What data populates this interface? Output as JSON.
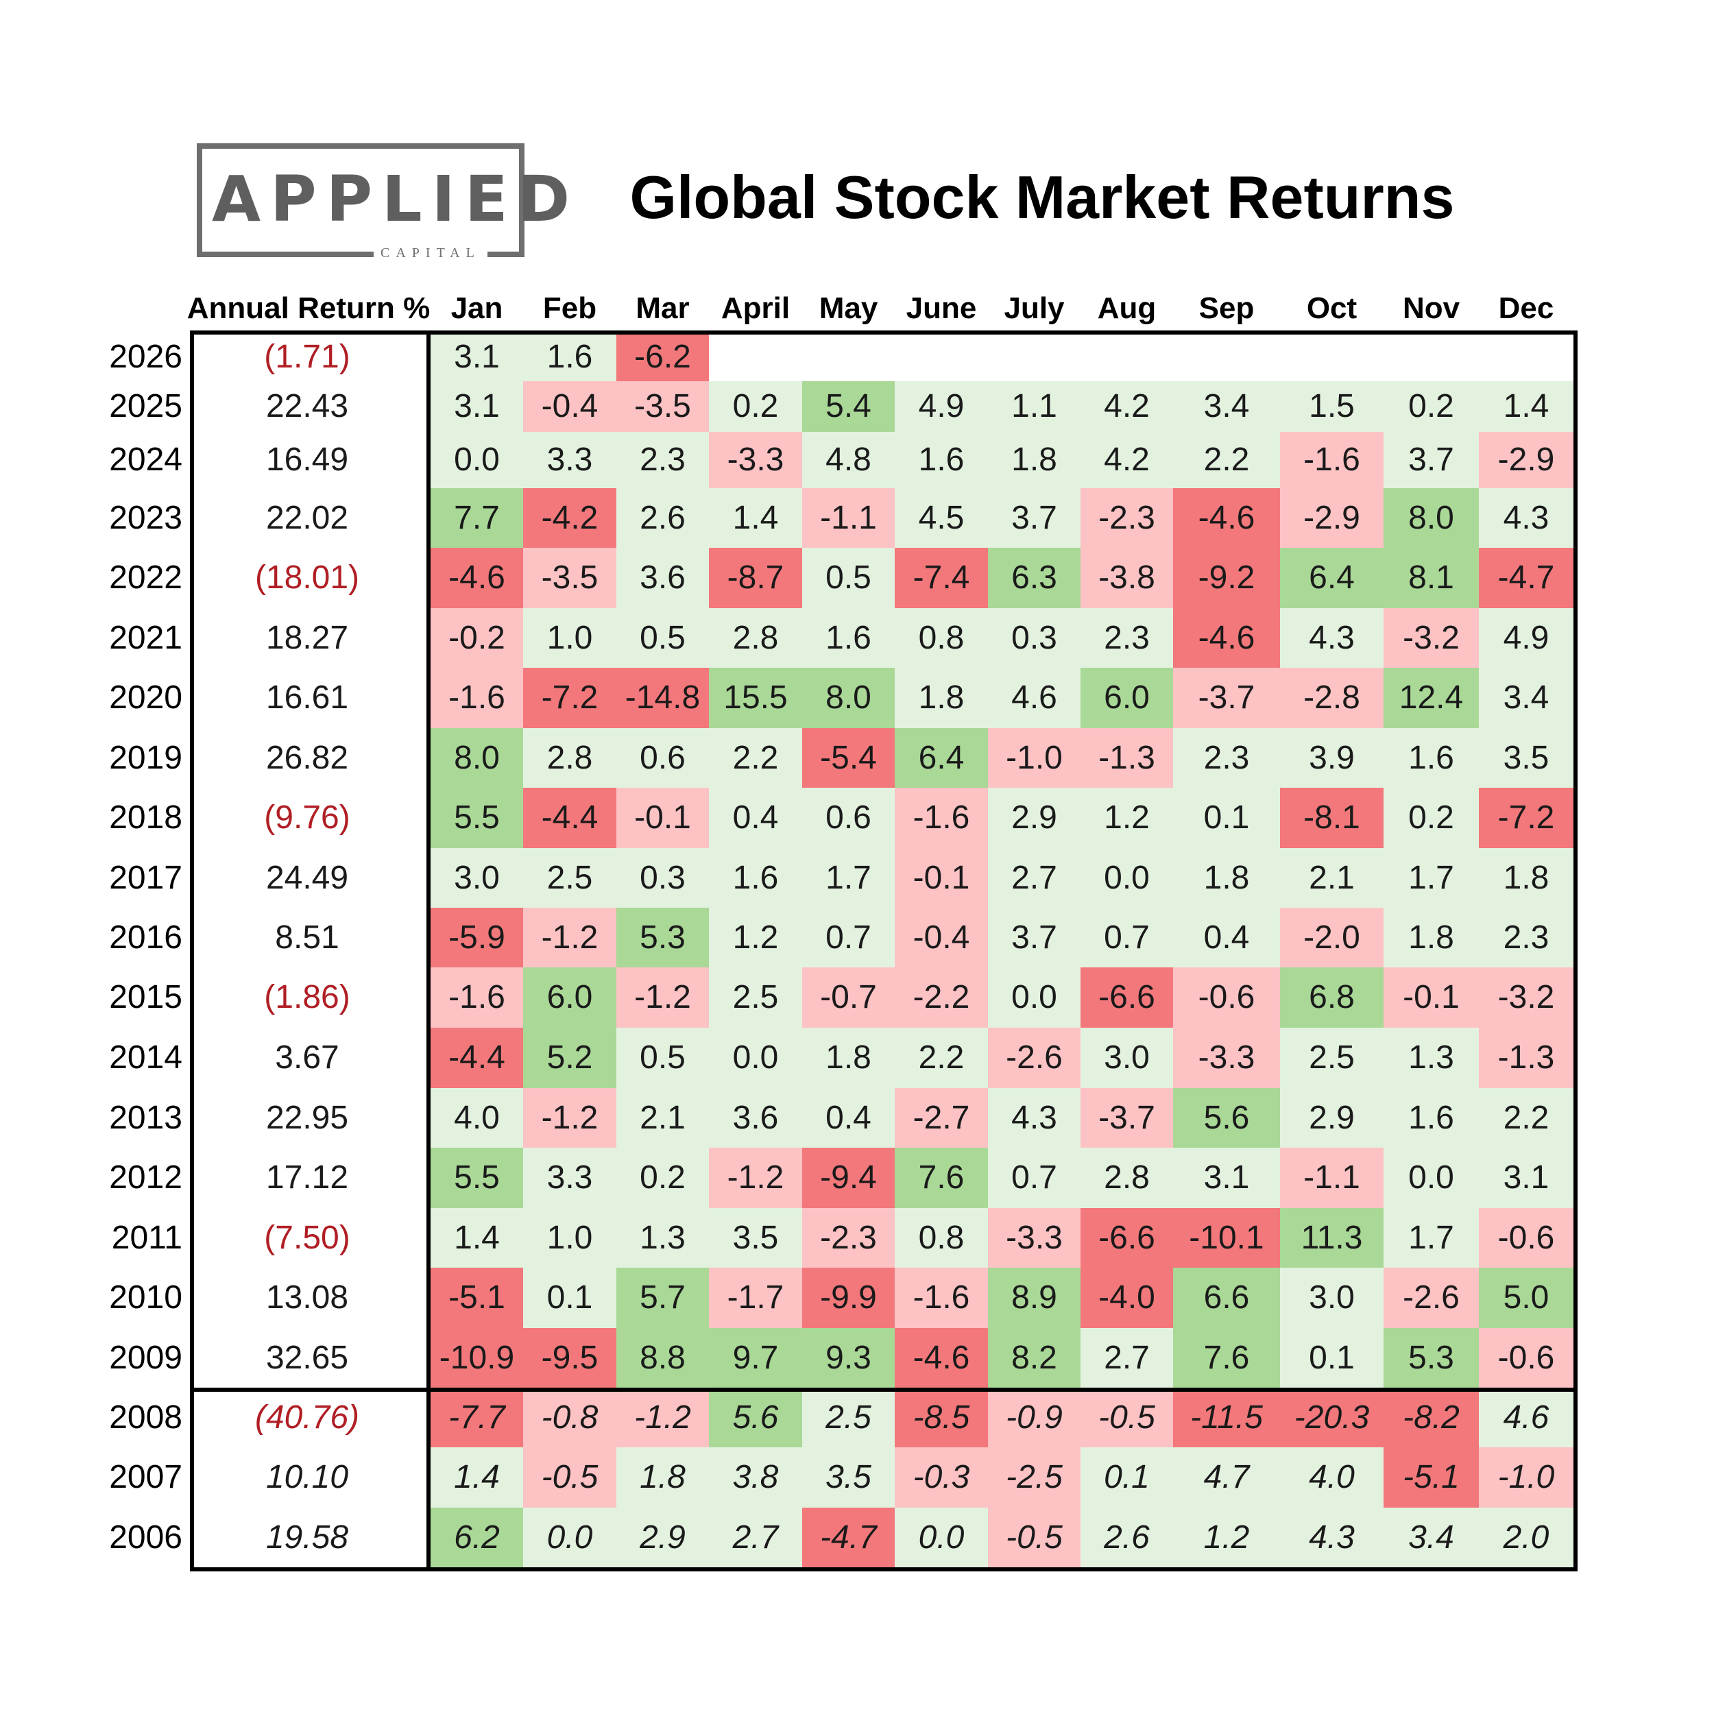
{
  "logo": {
    "word": "APPLIED",
    "sub": "CAPITAL"
  },
  "title": "Global Stock Market Returns",
  "header": {
    "annual": "Annual Return %",
    "months": [
      "Jan",
      "Feb",
      "Mar",
      "April",
      "May",
      "June",
      "July",
      "Aug",
      "Sep",
      "Oct",
      "Nov",
      "Dec"
    ]
  },
  "colors": {
    "light_green": "#e3f2df",
    "green": "#a9d897",
    "light_red": "#fcc2c4",
    "red": "#f3787b",
    "negative_text": "#b01e24"
  },
  "chart_data": {
    "type": "table",
    "title": "Global Stock Market Returns",
    "columns": [
      "Annual Return %",
      "Jan",
      "Feb",
      "Mar",
      "April",
      "May",
      "June",
      "July",
      "Aug",
      "Sep",
      "Oct",
      "Nov",
      "Dec"
    ],
    "rows": [
      {
        "year": "2026",
        "annual": "(1.71)",
        "months": [
          "3.1",
          "1.6",
          "-6.2",
          "",
          "",
          "",
          "",
          "",
          "",
          "",
          "",
          ""
        ]
      },
      {
        "year": "2025",
        "annual": "22.43",
        "months": [
          "3.1",
          "-0.4",
          "-3.5",
          "0.2",
          "5.4",
          "4.9",
          "1.1",
          "4.2",
          "3.4",
          "1.5",
          "0.2",
          "1.4"
        ]
      },
      {
        "year": "2024",
        "annual": "16.49",
        "months": [
          "0.0",
          "3.3",
          "2.3",
          "-3.3",
          "4.8",
          "1.6",
          "1.8",
          "4.2",
          "2.2",
          "-1.6",
          "3.7",
          "-2.9"
        ]
      },
      {
        "year": "2023",
        "annual": "22.02",
        "months": [
          "7.7",
          "-4.2",
          "2.6",
          "1.4",
          "-1.1",
          "4.5",
          "3.7",
          "-2.3",
          "-4.6",
          "-2.9",
          "8.0",
          "4.3"
        ]
      },
      {
        "year": "2022",
        "annual": "(18.01)",
        "months": [
          "-4.6",
          "-3.5",
          "3.6",
          "-8.7",
          "0.5",
          "-7.4",
          "6.3",
          "-3.8",
          "-9.2",
          "6.4",
          "8.1",
          "-4.7"
        ]
      },
      {
        "year": "2021",
        "annual": "18.27",
        "months": [
          "-0.2",
          "1.0",
          "0.5",
          "2.8",
          "1.6",
          "0.8",
          "0.3",
          "2.3",
          "-4.6",
          "4.3",
          "-3.2",
          "4.9"
        ]
      },
      {
        "year": "2020",
        "annual": "16.61",
        "months": [
          "-1.6",
          "-7.2",
          "-14.8",
          "15.5",
          "8.0",
          "1.8",
          "4.6",
          "6.0",
          "-3.7",
          "-2.8",
          "12.4",
          "3.4"
        ]
      },
      {
        "year": "2019",
        "annual": "26.82",
        "months": [
          "8.0",
          "2.8",
          "0.6",
          "2.2",
          "-5.4",
          "6.4",
          "-1.0",
          "-1.3",
          "2.3",
          "3.9",
          "1.6",
          "3.5"
        ]
      },
      {
        "year": "2018",
        "annual": "(9.76)",
        "months": [
          "5.5",
          "-4.4",
          "-0.1",
          "0.4",
          "0.6",
          "-1.6",
          "2.9",
          "1.2",
          "0.1",
          "-8.1",
          "0.2",
          "-7.2"
        ]
      },
      {
        "year": "2017",
        "annual": "24.49",
        "months": [
          "3.0",
          "2.5",
          "0.3",
          "1.6",
          "1.7",
          "-0.1",
          "2.7",
          "0.0",
          "1.8",
          "2.1",
          "1.7",
          "1.8"
        ]
      },
      {
        "year": "2016",
        "annual": "8.51",
        "months": [
          "-5.9",
          "-1.2",
          "5.3",
          "1.2",
          "0.7",
          "-0.4",
          "3.7",
          "0.7",
          "0.4",
          "-2.0",
          "1.8",
          "2.3"
        ]
      },
      {
        "year": "2015",
        "annual": "(1.86)",
        "months": [
          "-1.6",
          "6.0",
          "-1.2",
          "2.5",
          "-0.7",
          "-2.2",
          "0.0",
          "-6.6",
          "-0.6",
          "6.8",
          "-0.1",
          "-3.2"
        ]
      },
      {
        "year": "2014",
        "annual": "3.67",
        "months": [
          "-4.4",
          "5.2",
          "0.5",
          "0.0",
          "1.8",
          "2.2",
          "-2.6",
          "3.0",
          "-3.3",
          "2.5",
          "1.3",
          "-1.3"
        ]
      },
      {
        "year": "2013",
        "annual": "22.95",
        "months": [
          "4.0",
          "-1.2",
          "2.1",
          "3.6",
          "0.4",
          "-2.7",
          "4.3",
          "-3.7",
          "5.6",
          "2.9",
          "1.6",
          "2.2"
        ]
      },
      {
        "year": "2012",
        "annual": "17.12",
        "months": [
          "5.5",
          "3.3",
          "0.2",
          "-1.2",
          "-9.4",
          "7.6",
          "0.7",
          "2.8",
          "3.1",
          "-1.1",
          "0.0",
          "3.1"
        ]
      },
      {
        "year": "2011",
        "annual": "(7.50)",
        "months": [
          "1.4",
          "1.0",
          "1.3",
          "3.5",
          "-2.3",
          "0.8",
          "-3.3",
          "-6.6",
          "-10.1",
          "11.3",
          "1.7",
          "-0.6"
        ]
      },
      {
        "year": "2010",
        "annual": "13.08",
        "months": [
          "-5.1",
          "0.1",
          "5.7",
          "-1.7",
          "-9.9",
          "-1.6",
          "8.9",
          "-4.0",
          "6.6",
          "3.0",
          "-2.6",
          "5.0"
        ]
      },
      {
        "year": "2009",
        "annual": "32.65",
        "months": [
          "-10.9",
          "-9.5",
          "8.8",
          "9.7",
          "9.3",
          "-4.6",
          "8.2",
          "2.7",
          "7.6",
          "0.1",
          "5.3",
          "-0.6"
        ]
      },
      {
        "year": "2008",
        "annual": "(40.76)",
        "months": [
          "-7.7",
          "-0.8",
          "-1.2",
          "5.6",
          "2.5",
          "-8.5",
          "-0.9",
          "-0.5",
          "-11.5",
          "-20.3",
          "-8.2",
          "4.6"
        ]
      },
      {
        "year": "2007",
        "annual": "10.10",
        "months": [
          "1.4",
          "-0.5",
          "1.8",
          "3.8",
          "3.5",
          "-0.3",
          "-2.5",
          "0.1",
          "4.7",
          "4.0",
          "-5.1",
          "-1.0"
        ]
      },
      {
        "year": "2006",
        "annual": "19.58",
        "months": [
          "6.2",
          "0.0",
          "2.9",
          "2.7",
          "-4.7",
          "0.0",
          "-0.5",
          "2.6",
          "1.2",
          "4.3",
          "3.4",
          "2.0"
        ]
      }
    ]
  }
}
